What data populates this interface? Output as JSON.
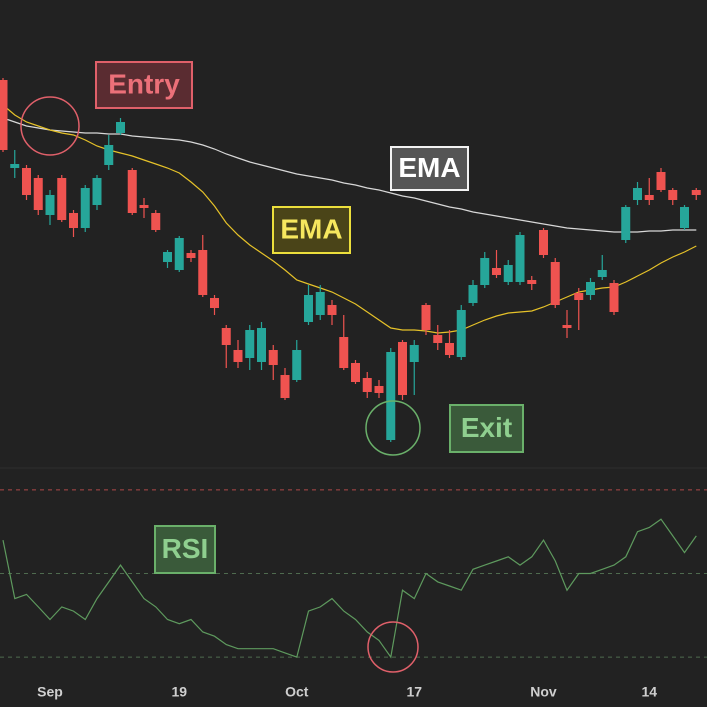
{
  "chart_data": {
    "type": "candlestick",
    "categories": [
      null,
      null,
      null,
      null,
      "Sep",
      null,
      null,
      null,
      null,
      null,
      null,
      null,
      null,
      null,
      null,
      "19",
      null,
      null,
      null,
      null,
      null,
      null,
      null,
      null,
      null,
      "Oct",
      null,
      null,
      null,
      null,
      null,
      null,
      null,
      null,
      null,
      "17",
      null,
      null,
      null,
      null,
      null,
      null,
      null,
      null,
      null,
      null,
      "Nov",
      null,
      null,
      null,
      null,
      null,
      null,
      null,
      null,
      "14",
      null,
      null,
      null,
      null
    ],
    "open": [
      390,
      302,
      302,
      292,
      255,
      292,
      257,
      242,
      265,
      305,
      337,
      300,
      265,
      257,
      208,
      200,
      217,
      220,
      172,
      142,
      120,
      112,
      108,
      120,
      95,
      90,
      148,
      155,
      165,
      133,
      107,
      92,
      84,
      30,
      128,
      108,
      165,
      135,
      127,
      113,
      167,
      185,
      202,
      188,
      188,
      190,
      240,
      208,
      145,
      177,
      175,
      193,
      187,
      230,
      270,
      275,
      298,
      280,
      242,
      280
    ],
    "high": [
      392,
      320,
      305,
      295,
      280,
      295,
      260,
      285,
      295,
      335,
      352,
      302,
      272,
      260,
      220,
      234,
      220,
      235,
      175,
      145,
      130,
      145,
      148,
      125,
      102,
      130,
      185,
      185,
      170,
      155,
      110,
      98,
      90,
      122,
      130,
      130,
      167,
      145,
      140,
      165,
      190,
      218,
      220,
      210,
      238,
      194,
      242,
      212,
      160,
      182,
      192,
      215,
      190,
      265,
      288,
      292,
      302,
      282,
      265,
      282
    ],
    "low": [
      318,
      292,
      270,
      255,
      245,
      248,
      233,
      238,
      260,
      300,
      335,
      255,
      252,
      238,
      202,
      198,
      208,
      173,
      155,
      102,
      102,
      100,
      100,
      90,
      70,
      88,
      145,
      150,
      145,
      100,
      86,
      72,
      72,
      28,
      70,
      75,
      135,
      120,
      112,
      110,
      164,
      182,
      192,
      185,
      185,
      180,
      212,
      162,
      132,
      140,
      170,
      190,
      155,
      227,
      265,
      265,
      278,
      265,
      240,
      270
    ],
    "close": [
      320,
      306,
      275,
      260,
      275,
      250,
      242,
      282,
      292,
      325,
      348,
      257,
      262,
      240,
      218,
      232,
      212,
      175,
      162,
      125,
      108,
      140,
      142,
      105,
      72,
      120,
      175,
      178,
      155,
      102,
      88,
      78,
      77,
      118,
      75,
      125,
      140,
      127,
      115,
      160,
      185,
      212,
      195,
      205,
      235,
      186,
      215,
      165,
      142,
      170,
      188,
      200,
      158,
      263,
      282,
      270,
      280,
      270,
      263,
      275
    ],
    "ylim": [
      0,
      470
    ],
    "up_color": "#26a69a",
    "down_color": "#ef5350",
    "series": [
      {
        "name": "EMA",
        "color": "#d8d8d8",
        "values": [
          352,
          348,
          344,
          342,
          340,
          339,
          338,
          337,
          337,
          336,
          336,
          334,
          333,
          332,
          331,
          330,
          328,
          325,
          321,
          316,
          312,
          308,
          305,
          302,
          299,
          296,
          294,
          292,
          290,
          287,
          285,
          282,
          280,
          277,
          274,
          272,
          269,
          266,
          263,
          261,
          258,
          256,
          254,
          252,
          250,
          248,
          246,
          244,
          242,
          241,
          240,
          239,
          238,
          238,
          238,
          239,
          239,
          240,
          240,
          240
        ]
      },
      {
        "name": "EMA",
        "color": "#e6c229",
        "values": [
          365,
          355,
          348,
          344,
          340,
          337,
          335,
          330,
          324,
          320,
          317,
          314,
          310,
          306,
          302,
          297,
          288,
          278,
          264,
          247,
          235,
          225,
          217,
          209,
          200,
          190,
          186,
          182,
          178,
          172,
          166,
          158,
          150,
          142,
          140,
          140,
          139,
          137,
          138,
          140,
          145,
          150,
          154,
          157,
          158,
          159,
          163,
          168,
          173,
          178,
          180,
          182,
          183,
          188,
          194,
          200,
          207,
          213,
          218,
          224
        ]
      }
    ],
    "annotations": [
      {
        "text": "Entry"
      },
      {
        "text": "Exit"
      }
    ],
    "rsi": {
      "name": "RSI",
      "color": "#5e9a5e",
      "ylim": [
        25,
        75
      ],
      "levels": [
        {
          "value": 70,
          "color": "#b04848"
        },
        {
          "value": 50,
          "color": "#4f6b4f"
        },
        {
          "value": 30,
          "color": "#4f6b4f"
        }
      ],
      "values": [
        58,
        44,
        45,
        42,
        39,
        42,
        41,
        39,
        44,
        48,
        52,
        48,
        44,
        42,
        39,
        38,
        39,
        36,
        35,
        33,
        32,
        32,
        32,
        32,
        31,
        30,
        41,
        42,
        44,
        41,
        39,
        36,
        34,
        30,
        46,
        44,
        50,
        48,
        47,
        46,
        51,
        52,
        53,
        54,
        52,
        54,
        58,
        53,
        46,
        50,
        50,
        51,
        52,
        54,
        60,
        61,
        63,
        59,
        55,
        59
      ]
    }
  }
}
